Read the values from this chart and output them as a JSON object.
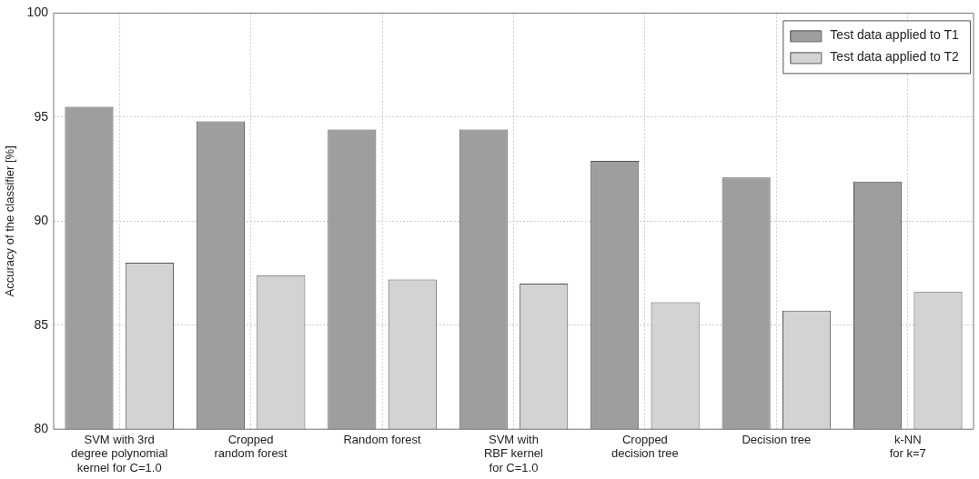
{
  "chart_data": {
    "type": "bar",
    "ylabel": "Accuracy of the classifier [%]",
    "categories": [
      "SVM with 3rd\ndegree polynomial\nkernel for C=1.0",
      "Cropped\nrandom forest",
      "Random forest",
      "SVM with\nRBF kernel\nfor C=1.0",
      "Cropped\ndecision tree",
      "Decision tree",
      "k-NN\nfor k=7"
    ],
    "series": [
      {
        "name": "Test data applied to T1",
        "color": "#9e9e9e",
        "values": [
          95.5,
          94.8,
          94.4,
          94.4,
          92.9,
          92.1,
          91.9
        ]
      },
      {
        "name": "Test data applied to T2",
        "color": "#d3d3d3",
        "values": [
          88.0,
          87.4,
          87.2,
          87.0,
          86.1,
          85.7,
          86.6
        ]
      }
    ],
    "ylim": [
      80,
      100
    ],
    "yticks": [
      80,
      85,
      90,
      95,
      100
    ],
    "grid": true,
    "legend": "top right"
  }
}
